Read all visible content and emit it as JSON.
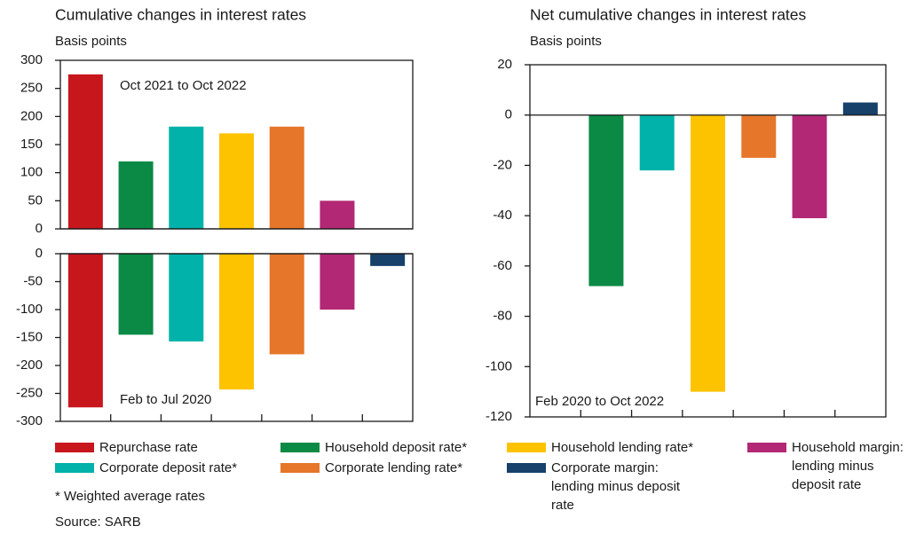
{
  "chart_data": [
    {
      "type": "bar",
      "title": "Cumulative changes in interest rates",
      "ylabel": "Basis points",
      "annotation": "Oct 2021 to Oct 2022",
      "values": [
        275,
        120,
        182,
        170,
        182,
        50,
        0
      ],
      "ylim": [
        0,
        300
      ],
      "yticks": [
        0,
        50,
        100,
        150,
        200,
        250,
        300
      ]
    },
    {
      "type": "bar",
      "annotation": "Feb to Jul 2020",
      "values": [
        -275,
        -145,
        -157,
        -243,
        -180,
        -100,
        -22
      ],
      "ylim": [
        -300,
        0
      ],
      "yticks": [
        -300,
        -250,
        -200,
        -150,
        -100,
        -50,
        0
      ]
    },
    {
      "type": "bar",
      "title": "Net cumulative changes in interest rates",
      "ylabel": "Basis points",
      "annotation": "Feb 2020 to Oct 2022",
      "values": [
        null,
        -68,
        -22,
        -110,
        -17,
        -41,
        5
      ],
      "ylim": [
        -120,
        20
      ],
      "yticks": [
        -120,
        -100,
        -80,
        -60,
        -40,
        -20,
        0,
        20
      ]
    }
  ],
  "legend": [
    {
      "name": "Repurchase rate",
      "color": "#c8161d"
    },
    {
      "name": "Household deposit rate*",
      "color": "#0a8a45"
    },
    {
      "name": "Corporate deposit rate*",
      "color": "#00b2a9"
    },
    {
      "name": "Household lending rate*",
      "color": "#fdc300"
    },
    {
      "name": "Corporate lending rate*",
      "color": "#e5762a"
    },
    {
      "name": "Household margin: lending minus deposit rate",
      "color": "#b22875"
    },
    {
      "name": "Corporate margin: lending minus deposit rate",
      "color": "#17406b"
    }
  ],
  "footnote": "* Weighted average rates",
  "source": "Source: SARB"
}
